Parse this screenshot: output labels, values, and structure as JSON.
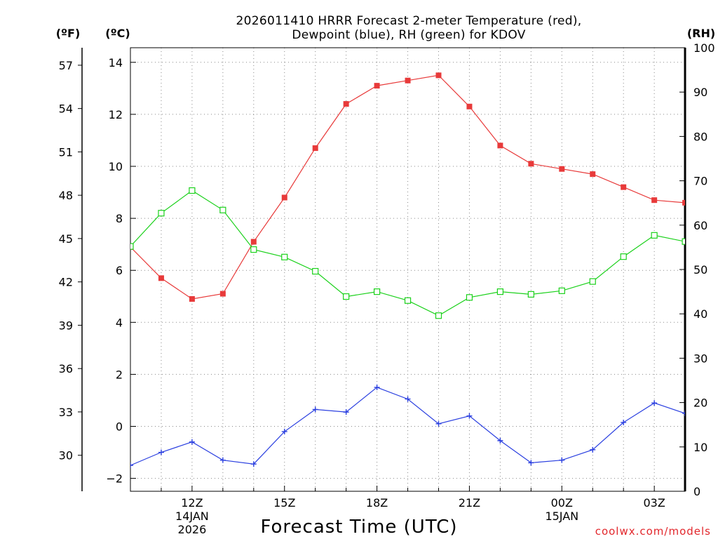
{
  "title_line1": "2026011410 HRRR Forecast 2-meter Temperature (red),",
  "title_line2": "Dewpoint (blue), RH (green) for KDOV",
  "units": {
    "fahrenheit": "(ºF)",
    "celsius": "(ºC)",
    "rh": "(RH)"
  },
  "x_axis_title": "Forecast Time (UTC)",
  "credit": "coolwx.com/models",
  "colors": {
    "temperature": "#e83a3a",
    "dewpoint": "#2a3fe0",
    "rh": "#1bd11b",
    "grid": "#888888"
  },
  "chart_data": {
    "type": "line",
    "x": [
      "10Z",
      "11Z",
      "12Z",
      "13Z",
      "14Z",
      "15Z",
      "16Z",
      "17Z",
      "18Z",
      "19Z",
      "20Z",
      "21Z",
      "22Z",
      "23Z",
      "00Z",
      "01Z",
      "02Z",
      "03Z",
      "04Z"
    ],
    "x_tick_labels": [
      {
        "hour": "12Z",
        "date": "14JAN",
        "year": "2026"
      },
      {
        "hour": "15Z",
        "date": "",
        "year": ""
      },
      {
        "hour": "18Z",
        "date": "",
        "year": ""
      },
      {
        "hour": "21Z",
        "date": "",
        "year": ""
      },
      {
        "hour": "00Z",
        "date": "15JAN",
        "year": ""
      },
      {
        "hour": "03Z",
        "date": "",
        "year": ""
      }
    ],
    "ylim_celsius": [
      -2.5,
      14.6
    ],
    "ylim_rh": [
      0,
      100
    ],
    "y_ticks_celsius": [
      "-2",
      "0",
      "2",
      "4",
      "6",
      "8",
      "10",
      "12",
      "14"
    ],
    "y_ticks_fahrenheit": [
      "30",
      "33",
      "36",
      "39",
      "42",
      "45",
      "48",
      "51",
      "54",
      "57"
    ],
    "y_ticks_rh": [
      "0",
      "10",
      "20",
      "30",
      "40",
      "50",
      "60",
      "70",
      "80",
      "90",
      "100"
    ],
    "series": [
      {
        "name": "Temperature",
        "unit": "C",
        "marker": "filled-square",
        "values": [
          6.9,
          5.7,
          4.9,
          5.1,
          7.1,
          8.8,
          10.7,
          12.4,
          13.1,
          13.3,
          13.5,
          12.3,
          10.8,
          10.1,
          9.9,
          9.7,
          9.2,
          8.7,
          8.6
        ]
      },
      {
        "name": "Dewpoint",
        "unit": "C",
        "marker": "plus",
        "values": [
          -1.5,
          -1.0,
          -0.6,
          -1.3,
          -1.45,
          -0.2,
          0.65,
          0.55,
          1.5,
          1.05,
          0.1,
          0.4,
          -0.55,
          -1.4,
          -1.3,
          -0.9,
          0.15,
          0.9,
          0.5
        ]
      },
      {
        "name": "RH",
        "unit": "%",
        "marker": "open-square",
        "values": [
          55.2,
          62.7,
          67.8,
          63.4,
          54.5,
          52.8,
          49.6,
          43.9,
          45.0,
          43.0,
          39.6,
          43.7,
          45.0,
          44.4,
          45.2,
          47.3,
          52.9,
          57.7,
          56.3
        ]
      }
    ]
  }
}
